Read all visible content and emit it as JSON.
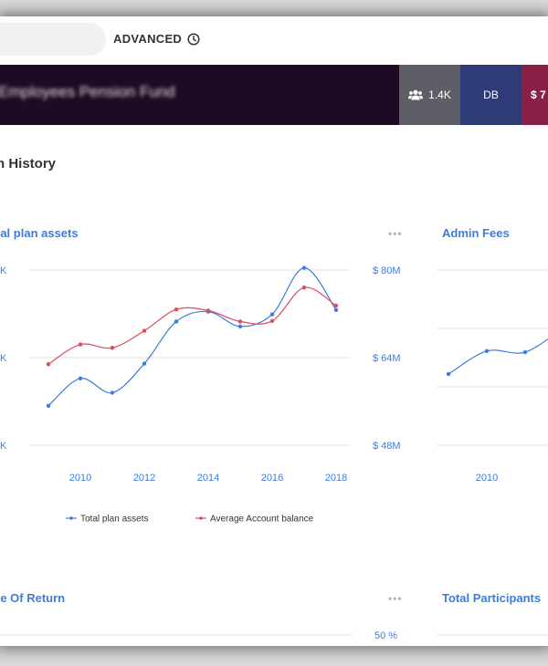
{
  "toolbar": {
    "advanced_label": "ADVANCED",
    "clock_icon": "clock-icon"
  },
  "banner": {
    "fund_name": "Employees Pension Fund",
    "participants_count": "1.4K",
    "participants_icon": "users-icon",
    "plan_type": "DB",
    "assets_value": "$ 7",
    "colors": {
      "background": "#1e0a22",
      "participants": "#5e5f66",
      "type": "#2e3b76",
      "assets": "#8a1f47"
    }
  },
  "section": {
    "title": "n History"
  },
  "cards": {
    "plan_assets": {
      "title": "tal plan assets",
      "more": "•••"
    },
    "admin_fees": {
      "title": "Admin Fees"
    },
    "rate_of_return": {
      "title": "te Of Return",
      "more": "•••"
    },
    "total_participants": {
      "title": "Total Participants"
    }
  },
  "chart_data": [
    {
      "type": "line",
      "title": "tal plan assets",
      "x": [
        2009,
        2010,
        2011,
        2012,
        2013,
        2014,
        2015,
        2016,
        2017,
        2018
      ],
      "x_ticks": [
        2010,
        2012,
        2014,
        2016,
        2018
      ],
      "xlim": [
        2008.4,
        2018.4
      ],
      "left_tick_labels": [
        "K",
        "K",
        "K"
      ],
      "right_axis": {
        "ticks": [
          48,
          64,
          80
        ],
        "tick_labels": [
          "$ 48M",
          "$ 64M",
          "$ 80M"
        ],
        "ylim": [
          48,
          80
        ]
      },
      "series": [
        {
          "name": "Total plan assets",
          "color": "#3b7ddd",
          "values": [
            55.2,
            60.2,
            57.6,
            62.9,
            70.6,
            72.4,
            69.7,
            71.9,
            80.4,
            72.7
          ]
        },
        {
          "name": "Average Account balance",
          "color": "#de4b5d",
          "values": [
            62.8,
            66.4,
            65.8,
            68.9,
            72.8,
            72.6,
            70.6,
            70.7,
            76.8,
            73.5
          ]
        }
      ],
      "grid": true,
      "legend": "bottom"
    },
    {
      "type": "line",
      "title": "Admin Fees",
      "x": [
        2009,
        2010,
        2011,
        2012
      ],
      "x_ticks": [
        2010
      ],
      "xlim": [
        2008.4,
        2018.4
      ],
      "series": [
        {
          "name": "",
          "color": "#3b7ddd",
          "values": [
            61,
            65.2,
            65,
            69.5
          ]
        }
      ],
      "ylim": [
        48,
        80
      ],
      "grid": true
    },
    {
      "type": "line",
      "title": "te Of Return",
      "right_axis": {
        "tick_labels": [
          "50 %"
        ]
      },
      "grid": true
    }
  ]
}
